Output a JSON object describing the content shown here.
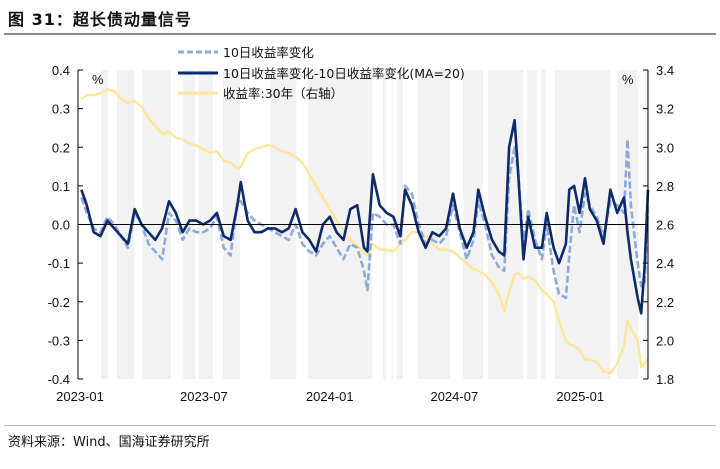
{
  "figure": {
    "title": "图 31：超长债动量信号",
    "source": "资料来源：Wind、国海证券研究所"
  },
  "chart_data": {
    "type": "line",
    "title": "图 31：超长债动量信号",
    "left_axis": {
      "unit_label": "%",
      "ylim": [
        -0.4,
        0.4
      ],
      "ticks": [
        "0.4",
        "0.3",
        "0.2",
        "0.1",
        "0.0",
        "-0.1",
        "-0.2",
        "-0.3",
        "-0.4"
      ]
    },
    "right_axis": {
      "unit_label": "%",
      "ylim": [
        1.8,
        3.4
      ],
      "ticks": [
        "3.4",
        "3.2",
        "3.0",
        "2.8",
        "2.6",
        "2.4",
        "2.2",
        "2.0",
        "1.8"
      ]
    },
    "x_ticks": [
      "2023-01",
      "2023-07",
      "2024-01",
      "2024-07",
      "2025-01"
    ],
    "xlim": [
      "2023-01-01",
      "2025-04-10"
    ],
    "grid": false,
    "legend_placement": "top-center",
    "colors": {
      "change": "#8eaadb",
      "diff": "#0d2a6b",
      "yield": "#ffe699",
      "band": "#f2f2f2",
      "zero_line": "#000000"
    },
    "shaded_periods": [
      [
        "2023-02-01",
        "2023-02-11"
      ],
      [
        "2023-02-24",
        "2023-03-22"
      ],
      [
        "2023-04-02",
        "2023-05-14"
      ],
      [
        "2023-06-01",
        "2023-06-18"
      ],
      [
        "2023-06-23",
        "2023-07-14"
      ],
      [
        "2023-07-29",
        "2023-08-23"
      ],
      [
        "2023-10-06",
        "2023-11-13"
      ],
      [
        "2023-11-30",
        "2024-03-03"
      ],
      [
        "2024-03-19",
        "2024-03-23"
      ],
      [
        "2024-03-31",
        "2024-04-03"
      ],
      [
        "2024-04-08",
        "2024-04-17"
      ],
      [
        "2024-05-08",
        "2024-06-25"
      ],
      [
        "2024-07-14",
        "2024-08-12"
      ],
      [
        "2024-08-19",
        "2024-10-10"
      ],
      [
        "2024-10-15",
        "2024-10-30"
      ],
      [
        "2024-11-05",
        "2024-11-11"
      ],
      [
        "2024-11-25",
        "2025-02-14"
      ],
      [
        "2025-02-24",
        "2025-03-27"
      ],
      [
        "2025-04-06",
        "2025-04-10"
      ]
    ],
    "x": [
      "2023-01-03",
      "2023-01-11",
      "2023-01-21",
      "2023-01-31",
      "2023-02-10",
      "2023-02-20",
      "2023-03-02",
      "2023-03-12",
      "2023-03-22",
      "2023-04-01",
      "2023-04-11",
      "2023-04-21",
      "2023-05-01",
      "2023-05-11",
      "2023-05-21",
      "2023-05-31",
      "2023-06-10",
      "2023-06-20",
      "2023-06-30",
      "2023-07-10",
      "2023-07-20",
      "2023-07-30",
      "2023-08-09",
      "2023-08-19",
      "2023-08-24",
      "2023-09-03",
      "2023-09-13",
      "2023-09-23",
      "2023-10-03",
      "2023-10-13",
      "2023-10-23",
      "2023-11-02",
      "2023-11-12",
      "2023-11-22",
      "2023-12-02",
      "2023-12-12",
      "2023-12-22",
      "2024-01-01",
      "2024-01-11",
      "2024-01-21",
      "2024-01-31",
      "2024-02-10",
      "2024-02-20",
      "2024-02-25",
      "2024-03-04",
      "2024-03-14",
      "2024-03-24",
      "2024-04-03",
      "2024-04-13",
      "2024-04-20",
      "2024-04-30",
      "2024-05-10",
      "2024-05-20",
      "2024-05-30",
      "2024-06-09",
      "2024-06-19",
      "2024-06-29",
      "2024-07-09",
      "2024-07-19",
      "2024-07-29",
      "2024-08-05",
      "2024-08-15",
      "2024-08-25",
      "2024-09-04",
      "2024-09-12",
      "2024-09-19",
      "2024-09-27",
      "2024-10-02",
      "2024-10-10",
      "2024-10-17",
      "2024-10-27",
      "2024-11-06",
      "2024-11-13",
      "2024-11-23",
      "2024-12-01",
      "2024-12-11",
      "2024-12-16",
      "2024-12-23",
      "2024-12-31",
      "2025-01-08",
      "2025-01-15",
      "2025-01-25",
      "2025-02-04",
      "2025-02-14",
      "2025-02-24",
      "2025-03-06",
      "2025-03-11",
      "2025-03-16",
      "2025-03-26",
      "2025-03-31",
      "2025-04-05",
      "2025-04-10"
    ],
    "series": [
      {
        "name": "10日收益率变化",
        "axis": "left",
        "style": "dashed",
        "values": [
          0.07,
          0.03,
          -0.01,
          -0.02,
          0.02,
          0.0,
          -0.03,
          -0.06,
          0.03,
          0.0,
          -0.05,
          -0.07,
          -0.09,
          0.03,
          0.01,
          -0.04,
          -0.01,
          -0.02,
          -0.02,
          -0.01,
          0.02,
          -0.06,
          -0.08,
          0.06,
          0.06,
          0.03,
          0.01,
          0.0,
          -0.01,
          -0.02,
          -0.03,
          -0.04,
          0.0,
          -0.05,
          -0.07,
          -0.08,
          -0.05,
          -0.03,
          -0.06,
          -0.09,
          -0.05,
          -0.06,
          -0.12,
          -0.17,
          0.03,
          0.02,
          0.0,
          0.0,
          -0.05,
          0.1,
          0.08,
          0.0,
          -0.05,
          -0.04,
          -0.05,
          -0.03,
          0.05,
          -0.02,
          -0.09,
          -0.04,
          0.06,
          0.0,
          -0.08,
          -0.11,
          -0.12,
          0.12,
          0.2,
          0.14,
          -0.05,
          0.04,
          -0.04,
          -0.09,
          0.0,
          -0.12,
          -0.18,
          -0.19,
          -0.08,
          0.05,
          -0.02,
          0.08,
          0.05,
          0.02,
          -0.03,
          0.06,
          0.05,
          0.03,
          0.22,
          0.05,
          -0.1,
          -0.16,
          -0.15,
          0.05
        ]
      },
      {
        "name": "10日收益率变化-10日收益率变化(MA=20)",
        "axis": "left",
        "style": "solid",
        "values": [
          0.09,
          0.05,
          -0.02,
          -0.03,
          0.01,
          -0.01,
          -0.03,
          -0.05,
          0.04,
          0.0,
          -0.02,
          -0.04,
          -0.01,
          0.06,
          0.03,
          -0.02,
          0.01,
          0.01,
          0.0,
          0.01,
          0.03,
          -0.03,
          -0.04,
          0.05,
          0.11,
          0.01,
          -0.02,
          -0.02,
          -0.01,
          -0.01,
          -0.02,
          -0.01,
          0.04,
          -0.02,
          -0.04,
          -0.07,
          0.0,
          0.02,
          -0.02,
          -0.04,
          0.04,
          0.05,
          -0.06,
          -0.07,
          0.13,
          0.05,
          0.03,
          0.02,
          -0.03,
          0.09,
          0.05,
          -0.02,
          -0.06,
          -0.02,
          -0.03,
          -0.01,
          0.08,
          -0.01,
          -0.06,
          -0.02,
          0.09,
          0.02,
          -0.04,
          -0.07,
          -0.08,
          0.2,
          0.27,
          0.14,
          -0.09,
          0.02,
          -0.06,
          -0.06,
          0.03,
          -0.06,
          -0.1,
          -0.05,
          0.09,
          0.1,
          0.03,
          0.12,
          0.04,
          0.01,
          -0.05,
          0.09,
          0.03,
          0.07,
          -0.02,
          -0.09,
          -0.19,
          -0.23,
          -0.11,
          0.09
        ]
      },
      {
        "name": "收益率:30年（右轴）",
        "axis": "right",
        "style": "solid",
        "values": [
          3.25,
          3.27,
          3.27,
          3.28,
          3.3,
          3.29,
          3.25,
          3.23,
          3.24,
          3.21,
          3.15,
          3.11,
          3.07,
          3.08,
          3.05,
          3.04,
          3.02,
          3.01,
          2.99,
          2.97,
          2.98,
          2.93,
          2.92,
          2.89,
          2.9,
          2.97,
          2.99,
          3.0,
          3.01,
          3.0,
          2.98,
          2.97,
          2.95,
          2.92,
          2.86,
          2.8,
          2.74,
          2.68,
          2.62,
          2.57,
          2.52,
          2.49,
          2.45,
          2.44,
          2.5,
          2.47,
          2.47,
          2.46,
          2.5,
          2.52,
          2.56,
          2.56,
          2.54,
          2.5,
          2.47,
          2.47,
          2.46,
          2.43,
          2.4,
          2.37,
          2.36,
          2.34,
          2.3,
          2.24,
          2.15,
          2.25,
          2.34,
          2.35,
          2.32,
          2.33,
          2.31,
          2.26,
          2.24,
          2.2,
          2.1,
          2.0,
          1.98,
          1.97,
          1.95,
          1.9,
          1.9,
          1.89,
          1.84,
          1.83,
          1.88,
          1.97,
          2.1,
          2.06,
          2.0,
          1.86,
          1.88,
          1.91
        ]
      }
    ]
  }
}
